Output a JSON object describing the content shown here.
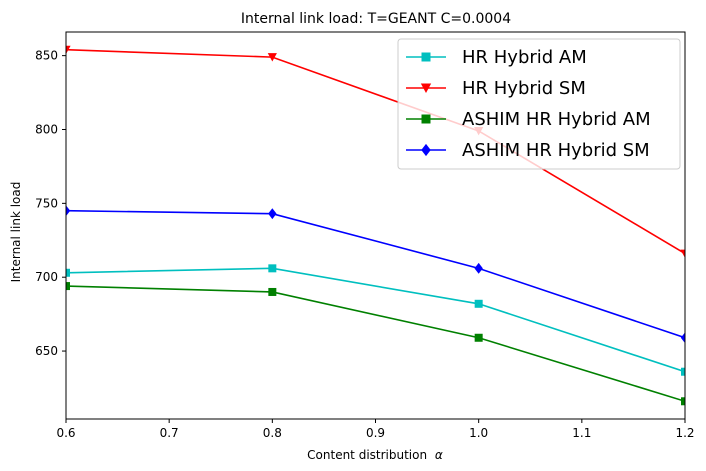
{
  "chart_data": {
    "type": "line",
    "title": "Internal link load: T=GEANT C=0.0004",
    "xlabel": "Content distribution",
    "xlabel_symbol": "α",
    "ylabel": "Internal link load",
    "x": [
      0.6,
      0.8,
      1.0,
      1.2
    ],
    "xlim": [
      0.6,
      1.2
    ],
    "ylim": [
      604,
      866
    ],
    "xticks": [
      "0.6",
      "0.7",
      "0.8",
      "0.9",
      "1.0",
      "1.1",
      "1.2"
    ],
    "yticks": [
      "650",
      "700",
      "750",
      "800",
      "850"
    ],
    "grid": false,
    "legend_position": "top-right",
    "series": [
      {
        "name": "HR Hybrid AM",
        "color": "#00bfbf",
        "marker": "square",
        "values": [
          703,
          706,
          682,
          636
        ]
      },
      {
        "name": "HR Hybrid SM",
        "color": "#ff0000",
        "marker": "triangle-down",
        "values": [
          854,
          849,
          799,
          716
        ]
      },
      {
        "name": "ASHIM HR Hybrid AM",
        "color": "#008000",
        "marker": "square",
        "values": [
          694,
          690,
          659,
          616
        ]
      },
      {
        "name": "ASHIM HR Hybrid SM",
        "color": "#0000ff",
        "marker": "diamond",
        "values": [
          745,
          743,
          706,
          659
        ]
      }
    ]
  }
}
